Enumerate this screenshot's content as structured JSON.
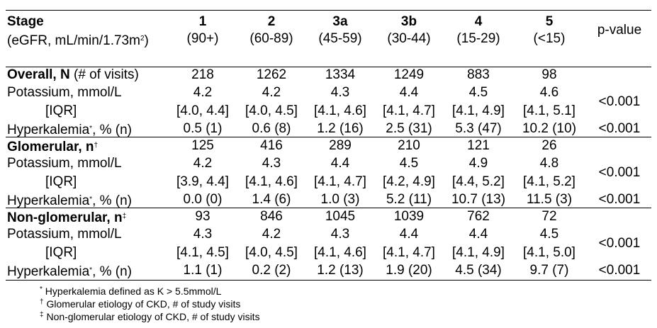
{
  "header": {
    "stage_label": "Stage",
    "egfr_label": "(eGFR, mL/min/1.73m",
    "egfr_sup": "2",
    "egfr_close": ")",
    "pvalue_label": "p-value",
    "stages": [
      {
        "num": "1",
        "range": "(90+)"
      },
      {
        "num": "2",
        "range": "(60-89)"
      },
      {
        "num": "3a",
        "range": "(45-59)"
      },
      {
        "num": "3b",
        "range": "(30-44)"
      },
      {
        "num": "4",
        "range": "(15-29)"
      },
      {
        "num": "5",
        "range": "(<15)"
      }
    ]
  },
  "groups": [
    {
      "title": "Overall, N",
      "title_suffix": " (# of visits)",
      "title_mark": "",
      "n": [
        "218",
        "1262",
        "1334",
        "1249",
        "883",
        "98"
      ],
      "potassium_label": "Potassium, mmol/L",
      "potassium": [
        "4.2",
        "4.2",
        "4.3",
        "4.4",
        "4.5",
        "4.6"
      ],
      "iqr_label": "[IQR]",
      "iqr": [
        "[4.0, 4.4]",
        "[4.0, 4.5]",
        "[4.1, 4.6]",
        "[4.1, 4.7]",
        "[4.1, 4.9]",
        "[4.1, 5.1]"
      ],
      "potassium_p": "<0.001",
      "hyper_label": "Hyperkalemia",
      "hyper_mark": "*",
      "hyper_suffix": ", % (n)",
      "hyper": [
        "0.5 (1)",
        "0.6 (8)",
        "1.2 (16)",
        "2.5 (31)",
        "5.3 (47)",
        "10.2 (10)"
      ],
      "hyper_p": "<0.001"
    },
    {
      "title": "Glomerular, n",
      "title_suffix": "",
      "title_mark": "†",
      "n": [
        "125",
        "416",
        "289",
        "210",
        "121",
        "26"
      ],
      "potassium_label": "Potassium, mmol/L",
      "potassium": [
        "4.2",
        "4.3",
        "4.4",
        "4.5",
        "4.9",
        "4.8"
      ],
      "iqr_label": "[IQR]",
      "iqr": [
        "[3.9, 4.4]",
        "[4.1, 4.6]",
        "[4.1, 4.7]",
        "[4.2, 4.9]",
        "[4.4, 5.2]",
        "[4.1, 5.2]"
      ],
      "potassium_p": "<0.001",
      "hyper_label": "Hyperkalemia",
      "hyper_mark": "*",
      "hyper_suffix": ", % (n)",
      "hyper": [
        "0.0 (0)",
        "1.4 (6)",
        "1.0 (3)",
        "5.2 (11)",
        "10.7 (13)",
        "11.5 (3)"
      ],
      "hyper_p": "<0.001"
    },
    {
      "title": "Non-glomerular, n",
      "title_suffix": "",
      "title_mark": "‡",
      "n": [
        "93",
        "846",
        "1045",
        "1039",
        "762",
        "72"
      ],
      "potassium_label": "Potassium, mmol/L",
      "potassium": [
        "4.3",
        "4.2",
        "4.3",
        "4.4",
        "4.4",
        "4.5"
      ],
      "iqr_label": "[IQR]",
      "iqr": [
        "[4.1, 4.5]",
        "[4.0, 4.5]",
        "[4.1, 4.6]",
        "[4.1, 4.7]",
        "[4.1, 4.9]",
        "[4.1, 5.0]"
      ],
      "potassium_p": "<0.001",
      "hyper_label": "Hyperkalemia",
      "hyper_mark": "*",
      "hyper_suffix": ", % (n)",
      "hyper": [
        "1.1 (1)",
        "0.2 (2)",
        "1.2 (13)",
        "1.9 (20)",
        "4.5 (34)",
        "9.7 (7)"
      ],
      "hyper_p": "<0.001"
    }
  ],
  "footnotes": [
    {
      "mark": "*",
      "text": " Hyperkalemia defined as K > 5.5mmol/L"
    },
    {
      "mark": "†",
      "text": " Glomerular etiology of CKD, # of study visits"
    },
    {
      "mark": "‡",
      "text": " Non-glomerular etiology of CKD, # of study visits"
    }
  ]
}
